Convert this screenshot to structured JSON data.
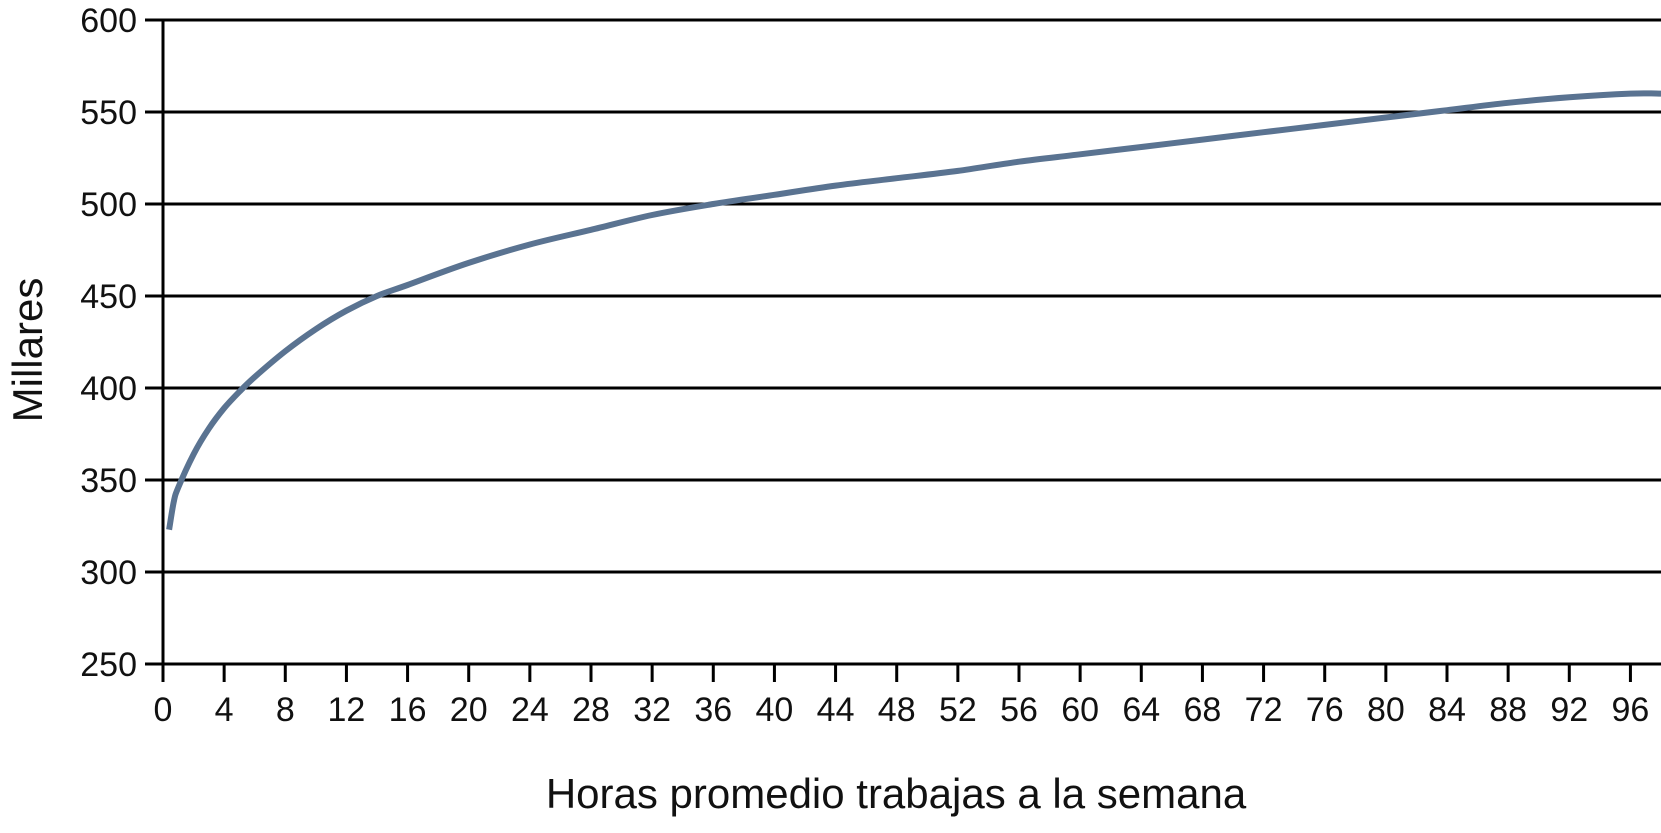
{
  "chart_data": {
    "type": "line",
    "title": "",
    "xlabel": "Horas promedio trabajas a la semana",
    "ylabel": "Millares",
    "xlim": [
      0,
      98
    ],
    "ylim": [
      250,
      600
    ],
    "grid": true,
    "x_ticks": [
      "0",
      "4",
      "8",
      "12",
      "16",
      "20",
      "24",
      "28",
      "32",
      "36",
      "40",
      "44",
      "48",
      "52",
      "56",
      "60",
      "64",
      "68",
      "72",
      "76",
      "80",
      "84",
      "88",
      "92",
      "96"
    ],
    "y_ticks": [
      "250",
      "300",
      "350",
      "400",
      "450",
      "500",
      "550",
      "600"
    ],
    "series": [
      {
        "color": "#5a7391",
        "points": [
          [
            0.4,
            323
          ],
          [
            0.7,
            338
          ],
          [
            1,
            346
          ],
          [
            2,
            364
          ],
          [
            3,
            378
          ],
          [
            4,
            389
          ],
          [
            5,
            398
          ],
          [
            6,
            406
          ],
          [
            8,
            420
          ],
          [
            10,
            432
          ],
          [
            12,
            442
          ],
          [
            14,
            450
          ],
          [
            16,
            456
          ],
          [
            20,
            468
          ],
          [
            24,
            478
          ],
          [
            28,
            486
          ],
          [
            32,
            494
          ],
          [
            36,
            500
          ],
          [
            40,
            505
          ],
          [
            44,
            510
          ],
          [
            48,
            514
          ],
          [
            52,
            518
          ],
          [
            56,
            523
          ],
          [
            60,
            527
          ],
          [
            64,
            531
          ],
          [
            68,
            535
          ],
          [
            72,
            539
          ],
          [
            76,
            543
          ],
          [
            80,
            547
          ],
          [
            84,
            551
          ],
          [
            88,
            555
          ],
          [
            92,
            558
          ],
          [
            96,
            560
          ],
          [
            98,
            560
          ]
        ]
      }
    ]
  }
}
